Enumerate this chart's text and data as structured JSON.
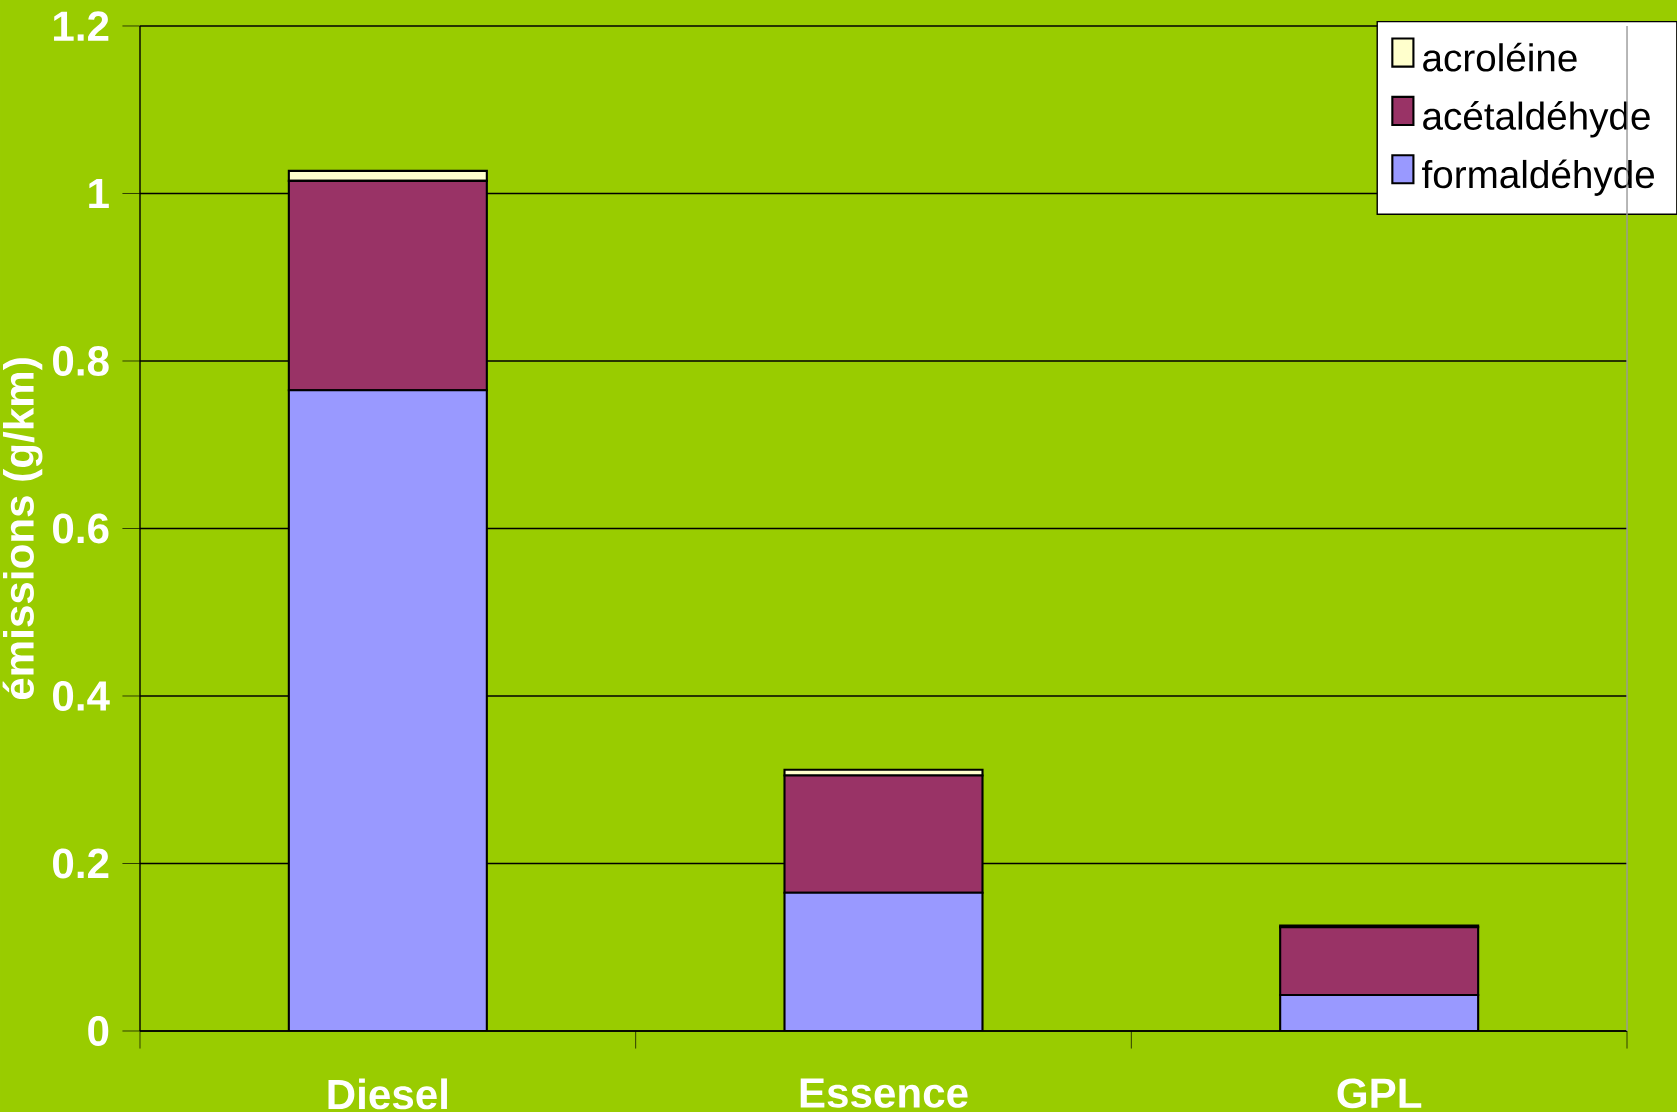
{
  "chart_data": {
    "type": "bar",
    "stacked": true,
    "ylabel": "émissions (g/km)",
    "categories": [
      "Diesel",
      "Essence",
      "GPL"
    ],
    "series": [
      {
        "name": "formaldéhyde",
        "color": "#9999ff",
        "values": [
          0.765,
          0.165,
          0.043
        ]
      },
      {
        "name": "acétaldéhyde",
        "color": "#993366",
        "values": [
          0.25,
          0.14,
          0.081
        ]
      },
      {
        "name": "acroléine",
        "color": "#ffffcc",
        "values": [
          0.012,
          0.007,
          0.002
        ]
      }
    ],
    "ylim": [
      0,
      1.2
    ],
    "yticks": [
      0,
      0.2,
      0.4,
      0.6,
      0.8,
      1,
      1.2
    ],
    "grid": "y",
    "legend": "top right"
  }
}
